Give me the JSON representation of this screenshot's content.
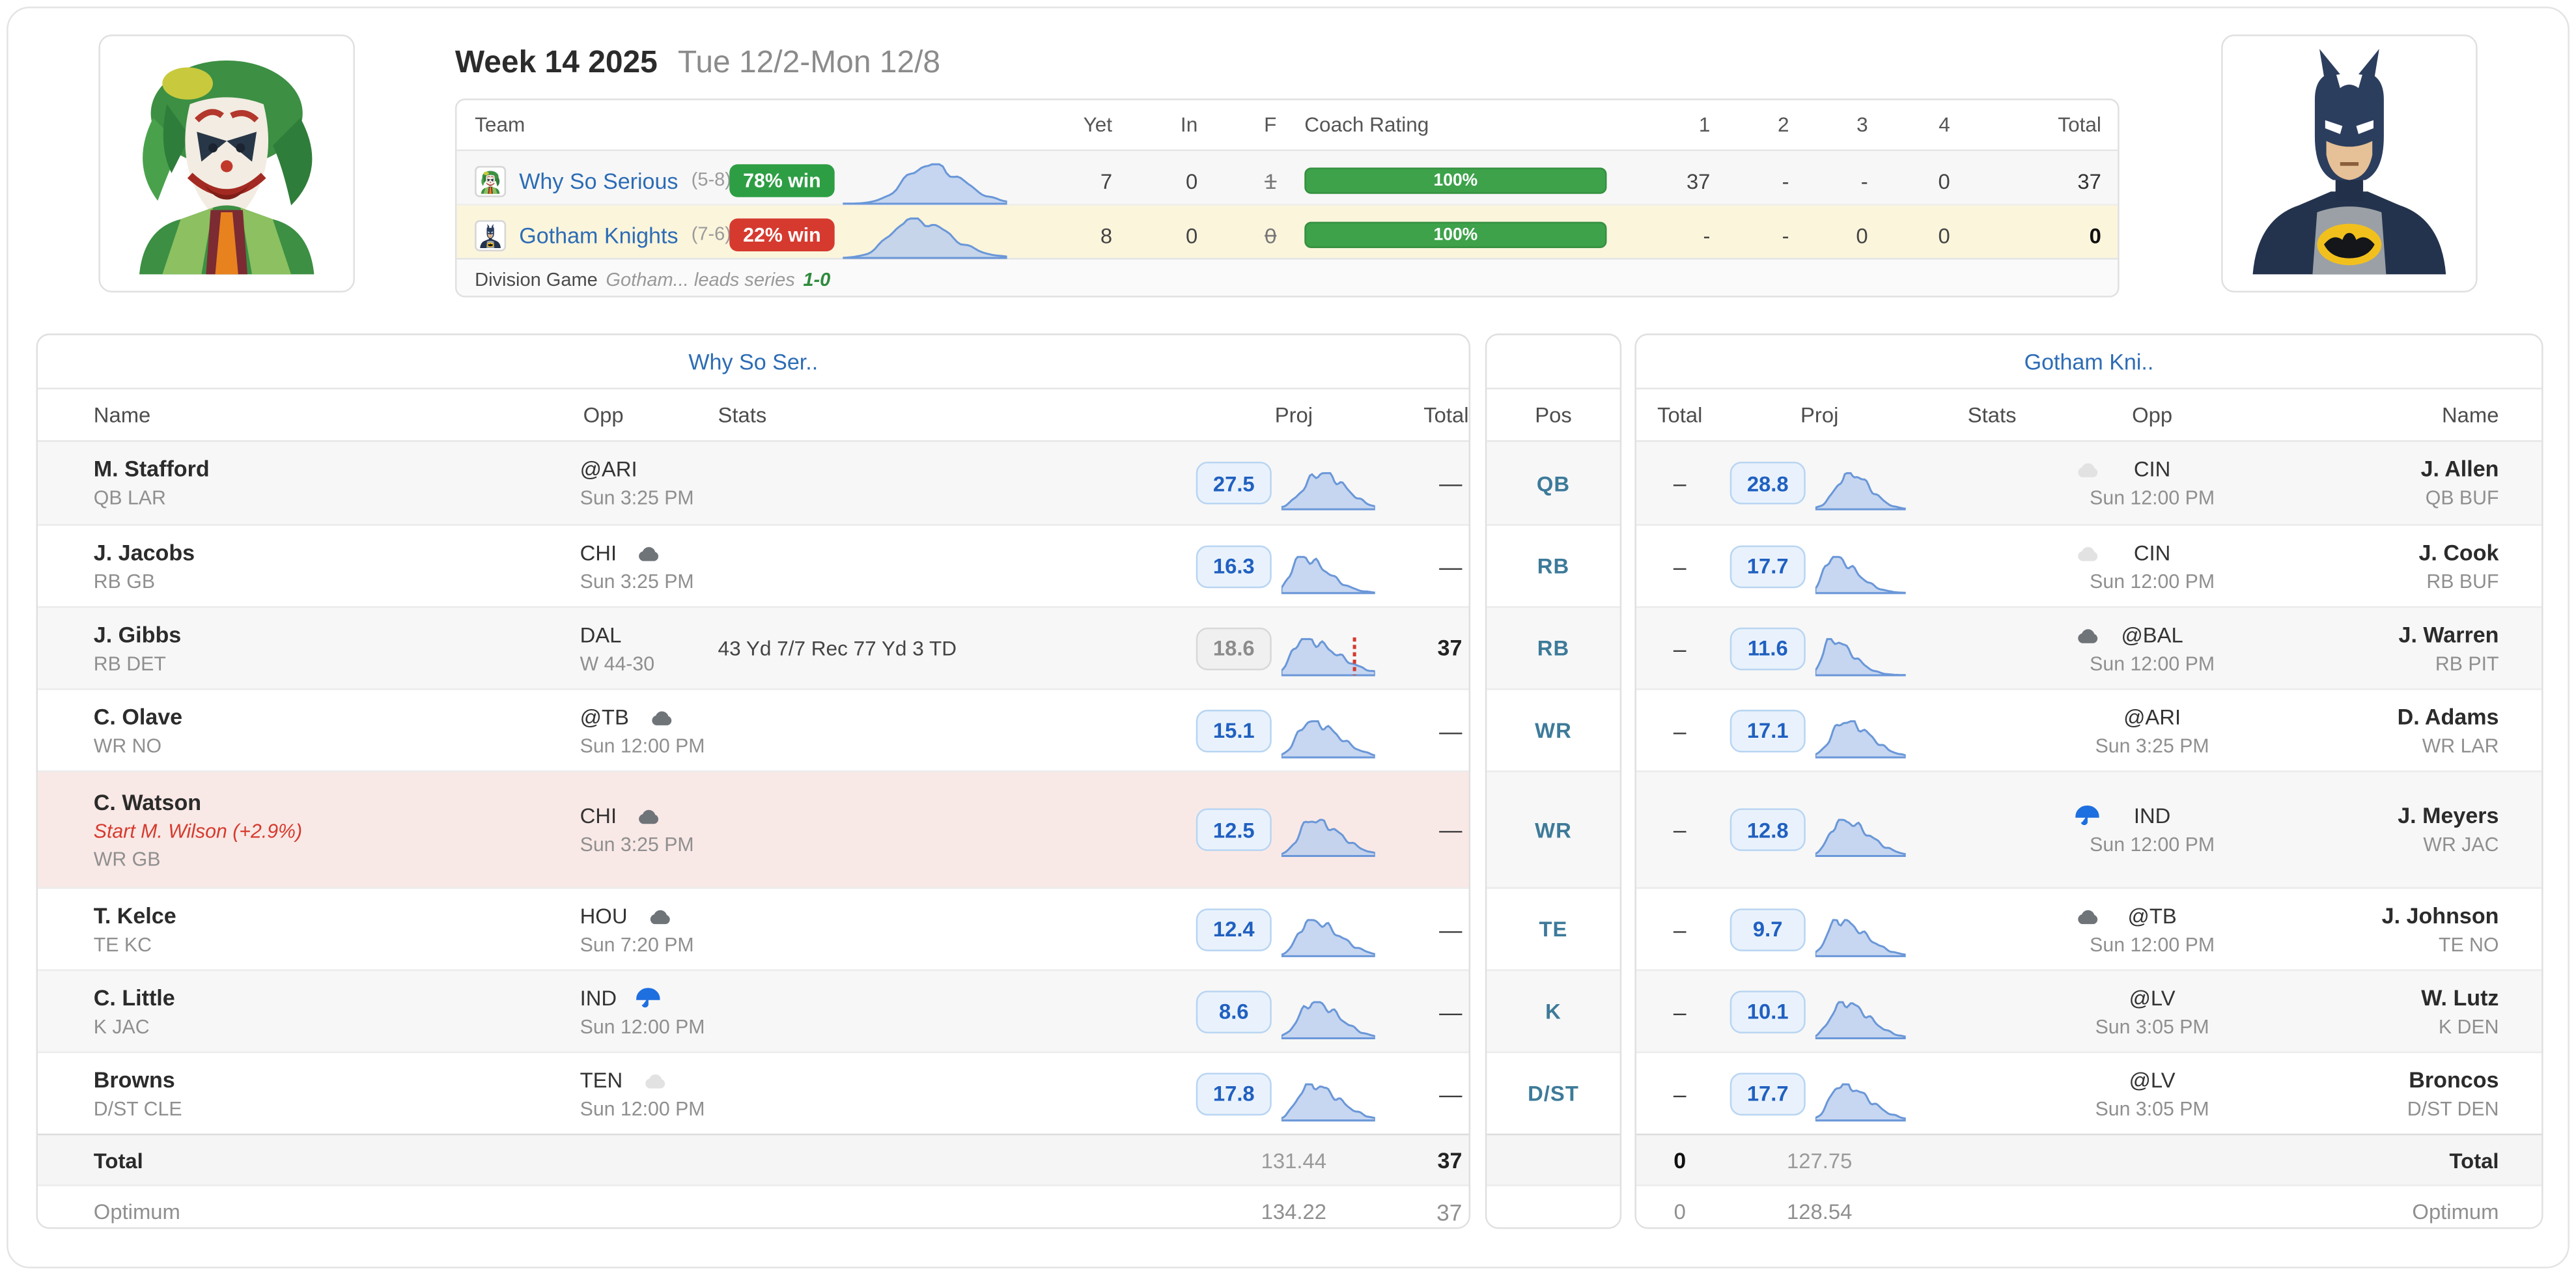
{
  "colors": {
    "accent_blue": "#2c6cb5",
    "proj_blue": "#2060c0",
    "win_green": "#2e9e44",
    "lose_red": "#d63a2f",
    "coach_green": "#3da24a",
    "series_green": "#2e8b3d",
    "alert_red": "#d63a2f",
    "spark_fill": "#b9cdee",
    "spark_stroke": "#6a97d8",
    "marker_red": "#d63a2f",
    "pos_teal": "#3d7a99",
    "row_yellow": "#fbf5dc",
    "row_pink": "#f9e9e6"
  },
  "header": {
    "week_title": "Week 14 2025",
    "week_range": "Tue 12/2-Mon 12/8",
    "columns": {
      "team": "Team",
      "yet": "Yet",
      "in_play": "In",
      "f": "F",
      "coach": "Coach Rating",
      "q1": "1",
      "q2": "2",
      "q3": "3",
      "q4": "4",
      "total": "Total"
    },
    "teams": [
      {
        "avatar": "joker",
        "name": "Why So Serious",
        "record": "(5-8)",
        "win": "78% win",
        "win_color": "#2e9e44",
        "yet": "7",
        "in_play": "0",
        "f": "1",
        "coach": "100%",
        "q1": "37",
        "q2": "-",
        "q3": "-",
        "q4": "0",
        "total": "37",
        "highlight": "gray",
        "total_bold": false,
        "curve": {
          "peak": 0.52,
          "wl": 0.14,
          "wr": 0.2,
          "seed": 2
        }
      },
      {
        "avatar": "batman",
        "name": "Gotham Knights",
        "record": "(7-6)",
        "win": "22% win",
        "win_color": "#d63a2f",
        "yet": "8",
        "in_play": "0",
        "f": "0",
        "coach": "100%",
        "q1": "-",
        "q2": "-",
        "q3": "0",
        "q4": "0",
        "total": "0",
        "highlight": "yellow",
        "total_bold": true,
        "curve": {
          "peak": 0.42,
          "wl": 0.13,
          "wr": 0.22,
          "seed": 5
        }
      }
    ],
    "note": {
      "label": "Division Game",
      "text": "Gotham... leads series",
      "score": "1-0"
    }
  },
  "left_table": {
    "title": "Why So Ser..",
    "columns": {
      "name": "Name",
      "opp": "Opp",
      "stats": "Stats",
      "proj": "Proj",
      "total": "Total"
    },
    "players": [
      {
        "name": "M. Stafford",
        "sub": "QB LAR",
        "opp": "@ARI",
        "opp_sub": "Sun 3:25 PM",
        "weather": null,
        "stats": "",
        "proj": "27.5",
        "played": false,
        "total": "—",
        "curve": {
          "peak": 0.42,
          "wl": 0.18,
          "wr": 0.26,
          "seed": 1
        }
      },
      {
        "name": "J. Jacobs",
        "sub": "RB GB",
        "opp": "CHI",
        "opp_sub": "Sun 3:25 PM",
        "weather": "cloud",
        "stats": "",
        "proj": "16.3",
        "played": false,
        "total": "—",
        "curve": {
          "peak": 0.2,
          "wl": 0.1,
          "wr": 0.28,
          "seed": 2
        }
      },
      {
        "name": "J. Gibbs",
        "sub": "RB DET",
        "opp": "DAL",
        "opp_sub": "W 44-30",
        "weather": null,
        "stats": "43 Yd 7/7 Rec 77 Yd 3 TD",
        "proj": "18.6",
        "played": true,
        "total": "37",
        "total_bold": true,
        "marker": 0.78,
        "curve": {
          "peak": 0.22,
          "wl": 0.11,
          "wr": 0.36,
          "seed": 3
        }
      },
      {
        "name": "C. Olave",
        "sub": "WR NO",
        "opp": "@TB",
        "opp_sub": "Sun 12:00 PM",
        "weather": "cloud",
        "stats": "",
        "proj": "15.1",
        "played": false,
        "total": "—",
        "curve": {
          "peak": 0.3,
          "wl": 0.13,
          "wr": 0.3,
          "seed": 4
        }
      },
      {
        "name": "C. Watson",
        "alert": "Start M. Wilson (+2.9%)",
        "sub": "WR GB",
        "opp": "CHI",
        "opp_sub": "Sun 3:25 PM",
        "weather": "cloud",
        "stats": "",
        "proj": "12.5",
        "played": false,
        "total": "—",
        "highlight": "pink",
        "curve": {
          "peak": 0.32,
          "wl": 0.13,
          "wr": 0.3,
          "seed": 5
        }
      },
      {
        "name": "T. Kelce",
        "sub": "TE KC",
        "opp": "HOU",
        "opp_sub": "Sun 7:20 PM",
        "weather": "cloud",
        "stats": "",
        "proj": "12.4",
        "played": false,
        "total": "—",
        "curve": {
          "peak": 0.3,
          "wl": 0.12,
          "wr": 0.3,
          "seed": 6
        }
      },
      {
        "name": "C. Little",
        "sub": "K JAC",
        "opp": "IND",
        "opp_sub": "Sun 12:00 PM",
        "weather": "rain",
        "stats": "",
        "proj": "8.6",
        "played": false,
        "total": "—",
        "curve": {
          "peak": 0.33,
          "wl": 0.14,
          "wr": 0.28,
          "seed": 7
        }
      },
      {
        "name": "Browns",
        "sub": "D/ST CLE",
        "opp": "TEN",
        "opp_sub": "Sun 12:00 PM",
        "weather": "cloud-light",
        "stats": "",
        "proj": "17.8",
        "played": false,
        "total": "—",
        "curve": {
          "peak": 0.3,
          "wl": 0.13,
          "wr": 0.3,
          "seed": 8
        }
      }
    ],
    "total_row": {
      "label": "Total",
      "proj": "131.44",
      "total": "37"
    },
    "optimum_row": {
      "label": "Optimum",
      "proj": "134.22",
      "total": "37"
    }
  },
  "pos_column": {
    "header": "Pos",
    "values": [
      "QB",
      "RB",
      "RB",
      "WR",
      "WR",
      "TE",
      "K",
      "D/ST"
    ]
  },
  "right_table": {
    "title": "Gotham Kni..",
    "columns": {
      "total": "Total",
      "proj": "Proj",
      "stats": "Stats",
      "opp": "Opp",
      "name": "Name"
    },
    "players": [
      {
        "name": "J. Allen",
        "sub": "QB BUF",
        "opp": "CIN",
        "opp_sub": "Sun 12:00 PM",
        "weather": "cloud-light",
        "stats": "",
        "proj": "28.8",
        "played": false,
        "total": "–",
        "curve": {
          "peak": 0.38,
          "wl": 0.15,
          "wr": 0.22,
          "seed": 9
        }
      },
      {
        "name": "J. Cook",
        "sub": "RB BUF",
        "opp": "CIN",
        "opp_sub": "Sun 12:00 PM",
        "weather": "cloud-light",
        "stats": "",
        "proj": "17.7",
        "played": false,
        "total": "–",
        "curve": {
          "peak": 0.18,
          "wl": 0.09,
          "wr": 0.26,
          "seed": 10
        }
      },
      {
        "name": "J. Warren",
        "sub": "RB PIT",
        "opp": "@BAL",
        "opp_sub": "Sun 12:00 PM",
        "weather": "cloud",
        "stats": "",
        "proj": "11.6",
        "played": false,
        "total": "–",
        "curve": {
          "peak": 0.16,
          "wl": 0.08,
          "wr": 0.24,
          "seed": 11
        }
      },
      {
        "name": "D. Adams",
        "sub": "WR LAR",
        "opp": "@ARI",
        "opp_sub": "Sun 3:25 PM",
        "weather": null,
        "stats": "",
        "proj": "17.1",
        "played": false,
        "total": "–",
        "curve": {
          "peak": 0.32,
          "wl": 0.14,
          "wr": 0.28,
          "seed": 12
        }
      },
      {
        "name": "J. Meyers",
        "sub": "WR JAC",
        "opp": "IND",
        "opp_sub": "Sun 12:00 PM",
        "weather": "rain",
        "stats": "",
        "proj": "12.8",
        "played": false,
        "total": "–",
        "curve": {
          "peak": 0.28,
          "wl": 0.12,
          "wr": 0.3,
          "seed": 13
        }
      },
      {
        "name": "J. Johnson",
        "sub": "TE NO",
        "opp": "@TB",
        "opp_sub": "Sun 12:00 PM",
        "weather": "cloud",
        "stats": "",
        "proj": "9.7",
        "played": false,
        "total": "–",
        "curve": {
          "peak": 0.24,
          "wl": 0.11,
          "wr": 0.3,
          "seed": 14
        }
      },
      {
        "name": "W. Lutz",
        "sub": "K DEN",
        "opp": "@LV",
        "opp_sub": "Sun 3:05 PM",
        "weather": null,
        "stats": "",
        "proj": "10.1",
        "played": false,
        "total": "–",
        "curve": {
          "peak": 0.3,
          "wl": 0.13,
          "wr": 0.28,
          "seed": 15
        }
      },
      {
        "name": "Broncos",
        "sub": "D/ST DEN",
        "opp": "@LV",
        "opp_sub": "Sun 3:05 PM",
        "weather": null,
        "stats": "",
        "proj": "17.7",
        "played": false,
        "total": "–",
        "curve": {
          "peak": 0.28,
          "wl": 0.12,
          "wr": 0.3,
          "seed": 16
        }
      }
    ],
    "total_row": {
      "label": "Total",
      "proj": "127.75",
      "total": "0"
    },
    "optimum_row": {
      "label": "Optimum",
      "proj": "128.54",
      "total": "0"
    }
  }
}
